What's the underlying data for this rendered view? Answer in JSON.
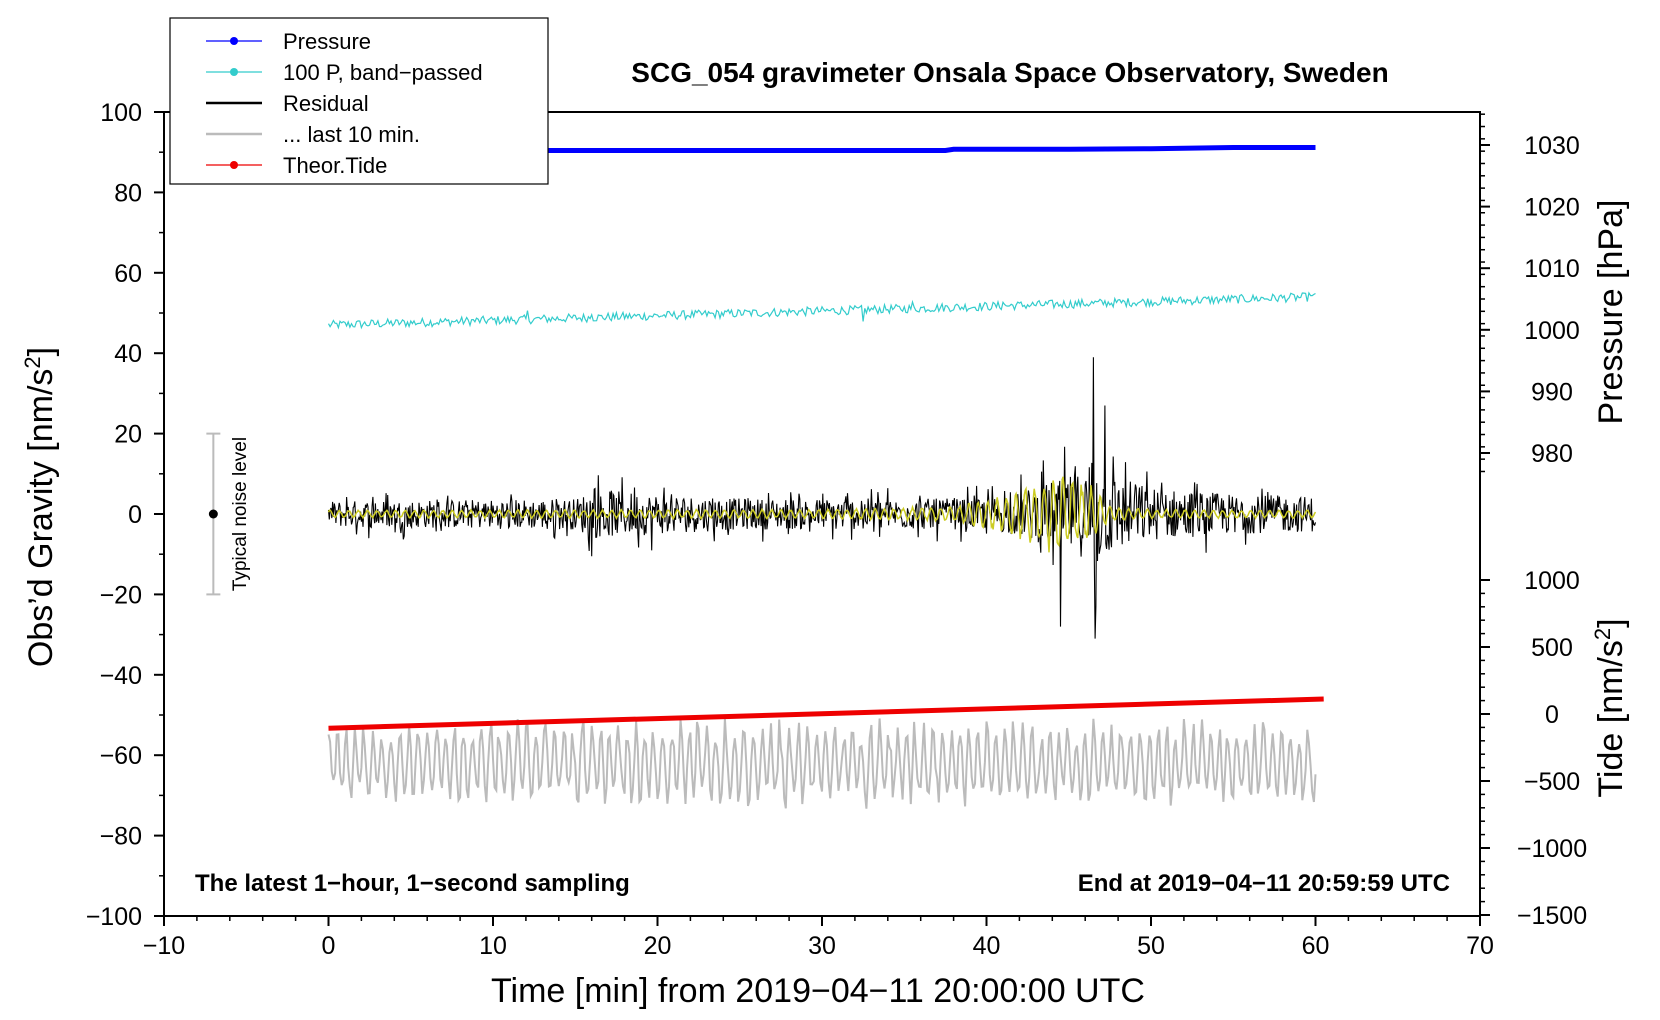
{
  "chart_data": {
    "type": "line",
    "title": "SCG_054 gravimeter Onsala Space Observatory, Sweden",
    "xlabel": "Time [min] from 2019−04−11 20:00:00 UTC",
    "ylabel_main": "Obs’d Gravity [nm/s",
    "ylabel_main_sup": "2",
    "ylabel_main_end": "]",
    "ylabel_pressure": "Pressure [hPa]",
    "ylabel_tide": "Tide [nm/s",
    "ylabel_tide_sup": "2",
    "ylabel_tide_end": "]",
    "xlim": [
      -10,
      70
    ],
    "ylim": [
      -100,
      100
    ],
    "x_ticks": [
      -10,
      0,
      10,
      20,
      30,
      40,
      50,
      60,
      70
    ],
    "x_tick_labels": [
      "−10",
      "0",
      "10",
      "20",
      "30",
      "40",
      "50",
      "60",
      "70"
    ],
    "y_ticks": [
      -100,
      -80,
      -60,
      -40,
      -20,
      0,
      20,
      40,
      60,
      80,
      100
    ],
    "y_tick_labels": [
      "−100",
      "−80",
      "−60",
      "−40",
      "−20",
      "0",
      "20",
      "40",
      "60",
      "80",
      "100"
    ],
    "pressure_axis": {
      "ticks": [
        980,
        990,
        1000,
        1010,
        1020,
        1030
      ],
      "labels": [
        "980",
        "990",
        "1000",
        "1010",
        "1020",
        "1030"
      ]
    },
    "tide_axis": {
      "ticks": [
        -1500,
        -1000,
        -500,
        0,
        500,
        1000
      ],
      "labels": [
        "−1500",
        "−1000",
        "−500",
        "0",
        "500",
        "1000"
      ]
    },
    "annotations": {
      "bottom_left": "The latest 1−hour, 1−second sampling",
      "bottom_right": "End at 2019−04−11 20:59:59 UTC",
      "noise_label": "Typical noise level",
      "noise_bar": {
        "x": -7,
        "center": 0,
        "low": -20,
        "high": 20
      }
    },
    "legend": {
      "position": "top-left",
      "entries": [
        {
          "label": "Pressure",
          "color": "#0000ff",
          "marker": true
        },
        {
          "label": "100 P, band−passed",
          "color": "#33cccc",
          "marker": true
        },
        {
          "label": "Residual",
          "color": "#000000",
          "marker": false
        },
        {
          "label": "... last 10 min.",
          "color": "#bbbbbb",
          "marker": false
        },
        {
          "label": "Theor.Tide",
          "color": "#ee0000",
          "marker": true
        }
      ]
    },
    "series": [
      {
        "name": "Pressure",
        "color": "#0000ff",
        "axis": "pressure",
        "x": [
          0,
          10,
          20,
          30,
          37.5,
          38,
          45,
          50,
          55,
          60
        ],
        "y": [
          1029.1,
          1029.1,
          1029.1,
          1029.1,
          1029.1,
          1029.3,
          1029.3,
          1029.4,
          1029.6,
          1029.6
        ]
      },
      {
        "name": "100 P, band−passed",
        "color": "#33cccc",
        "axis": "main",
        "x": [
          0,
          60
        ],
        "y": [
          47,
          54
        ],
        "noise": 2.2,
        "step": 0.1,
        "spikes": [
          [
            12.1,
            1.4
          ],
          [
            16,
            1.6
          ],
          [
            32.5,
            -3.2
          ],
          [
            35.5,
            0.8
          ],
          [
            41,
            1.2
          ],
          [
            59.7,
            1.2
          ]
        ]
      },
      {
        "name": "Residual",
        "color": "#000000",
        "axis": "main",
        "step": 0.05,
        "envelope": {
          "x": [
            0,
            15,
            16,
            25,
            40,
            42,
            44,
            46,
            46.5,
            47,
            50,
            55,
            60
          ],
          "y": [
            6,
            7,
            11,
            7,
            7,
            10,
            15,
            20,
            35,
            20,
            12,
            9,
            8
          ]
        },
        "spikes": [
          [
            46.5,
            39
          ],
          [
            46.6,
            -31
          ],
          [
            44.5,
            -28
          ],
          [
            47.2,
            27
          ]
        ]
      },
      {
        "name": "Residual (smoothed)",
        "color": "#cccc22",
        "axis": "main",
        "step": 0.05,
        "envelope": {
          "x": [
            0,
            30,
            38,
            41,
            43,
            44,
            45.5,
            46.5,
            47.5,
            50,
            60
          ],
          "y": [
            1,
            1.2,
            2,
            5,
            8,
            10,
            9,
            7,
            2,
            1.2,
            1
          ]
        }
      },
      {
        "name": "... last 10 min.",
        "color": "#bbbbbb",
        "axis": "main",
        "step": 0.1,
        "x": [
          0,
          60
        ],
        "center": -62,
        "amplitude": 10
      },
      {
        "name": "Theor.Tide",
        "color": "#ee0000",
        "axis": "tide",
        "x": [
          0,
          60.5
        ],
        "y": [
          -106,
          112
        ]
      }
    ]
  }
}
